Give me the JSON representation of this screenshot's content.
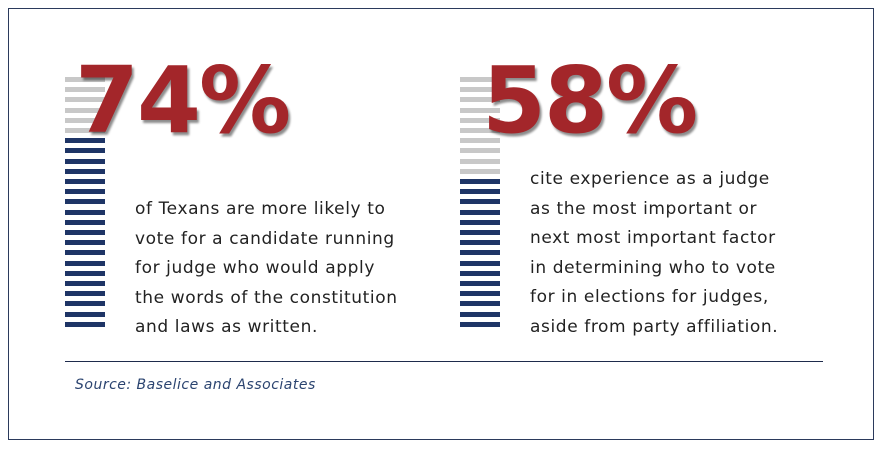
{
  "chart_data": [
    {
      "type": "bar",
      "value_percent": 74,
      "big_text": "74%",
      "description": "of Texans are more likely to\nvote for a candidate running\nfor judge who would apply\nthe words of the constitution\nand laws as written.",
      "filled_color": "#1e3566",
      "empty_color": "#c8c8c8"
    },
    {
      "type": "bar",
      "value_percent": 58,
      "big_text": "58%",
      "description": "cite experience as a judge\nas the most important or\nnext most important factor\nin determining who to vote\nfor in elections for judges,\naside from party affiliation.",
      "filled_color": "#1e3566",
      "empty_color": "#c8c8c8"
    }
  ],
  "source": "Source: Baselice and Associates",
  "colors": {
    "accent_red": "#a3262a",
    "navy": "#1e3566",
    "gray_bar": "#c8c8c8"
  }
}
